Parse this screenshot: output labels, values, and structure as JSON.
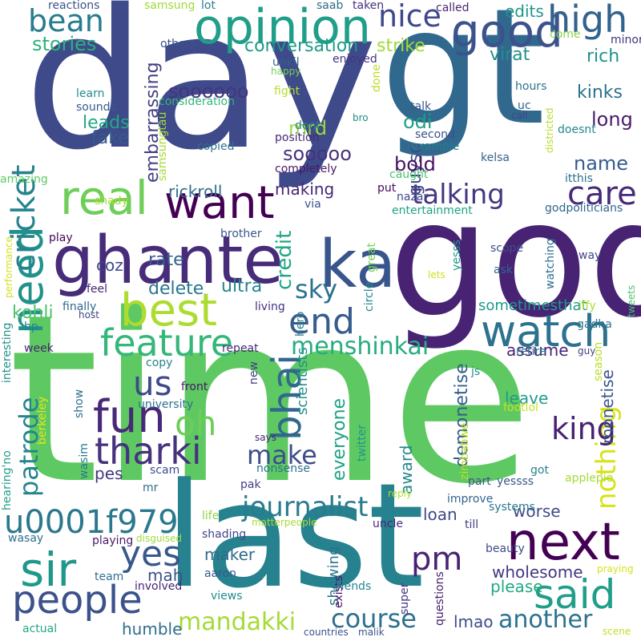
{
  "word_cloud": {
    "words": [
      {
        "text": "day",
        "color": "#3e4a89"
      },
      {
        "text": "gt",
        "color": "#31688e"
      },
      {
        "text": "time",
        "color": "#5ec962"
      },
      {
        "text": "god",
        "color": "#482374"
      },
      {
        "text": "last",
        "color": "#26828e"
      },
      {
        "text": "ghante",
        "color": "#472c7a"
      },
      {
        "text": "ka",
        "color": "#39568c"
      },
      {
        "text": "opinion",
        "color": "#1f9e89"
      },
      {
        "text": "good",
        "color": "#3b528b"
      },
      {
        "text": "high",
        "color": "#33638d"
      },
      {
        "text": "want",
        "color": "#440154"
      },
      {
        "text": "real",
        "color": "#6ece58"
      },
      {
        "text": "need",
        "color": "#21918c"
      },
      {
        "text": "best",
        "color": "#addc30"
      },
      {
        "text": "fun",
        "color": "#482878"
      },
      {
        "text": "tharki",
        "color": "#46327e"
      },
      {
        "text": "us",
        "color": "#3e4989"
      },
      {
        "text": "oh",
        "color": "#6ece58"
      },
      {
        "text": "feature",
        "color": "#35b779"
      },
      {
        "text": "watch",
        "color": "#2c728e"
      },
      {
        "text": "bhai",
        "color": "#31688e"
      },
      {
        "text": "end",
        "color": "#365d8d"
      },
      {
        "text": "care",
        "color": "#472a7a"
      },
      {
        "text": "talking",
        "color": "#453781"
      },
      {
        "text": "nice",
        "color": "#3e4989"
      },
      {
        "text": "bean",
        "color": "#287c8e"
      },
      {
        "text": "stories",
        "color": "#2db27d"
      },
      {
        "text": "cricket",
        "color": "#26828e"
      },
      {
        "text": "sir",
        "color": "#1f988b"
      },
      {
        "text": "people",
        "color": "#3b528b"
      },
      {
        "text": "yes",
        "color": "#38588c"
      },
      {
        "text": "u0001f979",
        "color": "#2a788e"
      },
      {
        "text": "next",
        "color": "#440154"
      },
      {
        "text": "said",
        "color": "#1f9e89"
      },
      {
        "text": "pm",
        "color": "#482374"
      },
      {
        "text": "journalist",
        "color": "#287c8e"
      },
      {
        "text": "make",
        "color": "#3d4e8a"
      },
      {
        "text": "patrode",
        "color": "#25848e"
      },
      {
        "text": "mandakki",
        "color": "#a5db36"
      },
      {
        "text": "course",
        "color": "#2d708e"
      },
      {
        "text": "another",
        "color": "#2c728e"
      },
      {
        "text": "nothing",
        "color": "#d8e219"
      },
      {
        "text": "king",
        "color": "#482173"
      },
      {
        "text": "menshinkai",
        "color": "#27ad81"
      },
      {
        "text": "sky",
        "color": "#2c728e"
      },
      {
        "text": "credit",
        "color": "#21a685"
      },
      {
        "text": "conversation",
        "color": "#1f9a8a"
      },
      {
        "text": "edits",
        "color": "#1f958b"
      },
      {
        "text": "strike",
        "color": "#a2da37"
      },
      {
        "text": "virat",
        "color": "#21918c"
      },
      {
        "text": "rich",
        "color": "#20928c"
      },
      {
        "text": "kinks",
        "color": "#2c728e"
      },
      {
        "text": "long",
        "color": "#481b6d"
      },
      {
        "text": "name",
        "color": "#365c8d"
      },
      {
        "text": "guyso",
        "color": "#3e4a89"
      },
      {
        "text": "soooooo",
        "color": "#463480"
      },
      {
        "text": "sooooo",
        "color": "#46327e"
      },
      {
        "text": "bold",
        "color": "#471063"
      },
      {
        "text": "odi",
        "color": "#1fa088"
      },
      {
        "text": "mrd",
        "color": "#9bd93c"
      },
      {
        "text": "leads",
        "color": "#22a884"
      },
      {
        "text": "fake",
        "color": "#375b8d"
      },
      {
        "text": "embarrassing",
        "color": "#423f85"
      },
      {
        "text": "making",
        "color": "#482777"
      },
      {
        "text": "rickroll",
        "color": "#2e6e8e"
      },
      {
        "text": "rate",
        "color": "#355f8d"
      },
      {
        "text": "coz",
        "color": "#3e4989"
      },
      {
        "text": "delete",
        "color": "#2a768e"
      },
      {
        "text": "ultra",
        "color": "#24868e"
      },
      {
        "text": "kohli",
        "color": "#4ec36b"
      },
      {
        "text": "assume",
        "color": "#482475"
      },
      {
        "text": "sometimesthat",
        "color": "#1e9b8a"
      },
      {
        "text": "demonetise",
        "color": "#355e8d"
      },
      {
        "text": "everyone",
        "color": "#1fa188"
      },
      {
        "text": "award",
        "color": "#23898e"
      },
      {
        "text": "scientists",
        "color": "#21918c"
      },
      {
        "text": "leave",
        "color": "#1f9a8a"
      },
      {
        "text": "monetise",
        "color": "#3b528b"
      },
      {
        "text": "worse",
        "color": "#3e4a89"
      },
      {
        "text": "loan",
        "color": "#3f4889"
      },
      {
        "text": "maker",
        "color": "#2f6b8e"
      },
      {
        "text": "wholesome",
        "color": "#453882"
      },
      {
        "text": "mah",
        "color": "#3b528b"
      },
      {
        "text": "humble",
        "color": "#2e6d8e"
      },
      {
        "text": "lmao",
        "color": "#3d4d8a"
      },
      {
        "text": "please",
        "color": "#22a884"
      },
      {
        "text": "showing",
        "color": "#2c738e"
      },
      {
        "text": "pes",
        "color": "#453781"
      },
      {
        "text": "reactions",
        "color": "#3a548c"
      },
      {
        "text": "samsung",
        "color": "#a0da39"
      },
      {
        "text": "lot",
        "color": "#26818e"
      },
      {
        "text": "saab",
        "color": "#2f6b8e"
      },
      {
        "text": "taken",
        "color": "#46307e"
      },
      {
        "text": "called",
        "color": "#482777"
      },
      {
        "text": "come",
        "color": "#86d549"
      },
      {
        "text": "minor",
        "color": "#46327e"
      },
      {
        "text": "others",
        "color": "#3b528b"
      },
      {
        "text": "unkil",
        "color": "#34618d"
      },
      {
        "text": "happy",
        "color": "#75d054"
      },
      {
        "text": "enjoyed",
        "color": "#453581"
      },
      {
        "text": "done",
        "color": "#bade28"
      },
      {
        "text": "learn",
        "color": "#228d8d"
      },
      {
        "text": "sounds",
        "color": "#365c8d"
      },
      {
        "text": "consideration",
        "color": "#32b67a"
      },
      {
        "text": "fight",
        "color": "#b5de2b"
      },
      {
        "text": "talk",
        "color": "#3a548c"
      },
      {
        "text": "hours",
        "color": "#2d718e"
      },
      {
        "text": "uc",
        "color": "#33638d"
      },
      {
        "text": "call",
        "color": "#3f4889"
      },
      {
        "text": "bro",
        "color": "#228c8d"
      },
      {
        "text": "dont",
        "color": "#27808e"
      },
      {
        "text": "position",
        "color": "#482878"
      },
      {
        "text": "second",
        "color": "#3b528b"
      },
      {
        "text": "example",
        "color": "#287d8e"
      },
      {
        "text": "doesnt",
        "color": "#23888e"
      },
      {
        "text": "samsungtau",
        "color": "#a8db34"
      },
      {
        "text": "copied",
        "color": "#2c728e"
      },
      {
        "text": "completely",
        "color": "#481769"
      },
      {
        "text": "kelsa",
        "color": "#34618d"
      },
      {
        "text": "districted",
        "color": "#b8de29"
      },
      {
        "text": "amazing",
        "color": "#5ec962"
      },
      {
        "text": "caught",
        "color": "#4ac16d"
      },
      {
        "text": "put",
        "color": "#46085c"
      },
      {
        "text": "itthis",
        "color": "#2d708e"
      },
      {
        "text": "nazar",
        "color": "#3f4788"
      },
      {
        "text": "entertainment",
        "color": "#20a386"
      },
      {
        "text": "godpoliticians",
        "color": "#31668e"
      },
      {
        "text": "shady",
        "color": "#a5db36"
      },
      {
        "text": "via",
        "color": "#3b528b"
      },
      {
        "text": "brother",
        "color": "#39568c"
      },
      {
        "text": "play",
        "color": "#450457"
      },
      {
        "text": "scope",
        "color": "#3d4e8a"
      },
      {
        "text": "yesss",
        "color": "#1e9b8a"
      },
      {
        "text": "watching",
        "color": "#2e6f8e"
      },
      {
        "text": "way",
        "color": "#404688"
      },
      {
        "text": "ask",
        "color": "#31668e"
      },
      {
        "text": "lets",
        "color": "#cde11d"
      },
      {
        "text": "performance",
        "color": "#d2e21b"
      },
      {
        "text": "tweets",
        "color": "#4ac16d"
      },
      {
        "text": "feel",
        "color": "#482575"
      },
      {
        "text": "great",
        "color": "#73d056"
      },
      {
        "text": "circle",
        "color": "#23898e"
      },
      {
        "text": "living",
        "color": "#46327e"
      },
      {
        "text": "finally",
        "color": "#31688e"
      },
      {
        "text": "host",
        "color": "#3f4788"
      },
      {
        "text": "bp",
        "color": "#26828e"
      },
      {
        "text": "iffy",
        "color": "#addc30"
      },
      {
        "text": "hero",
        "color": "#297a8e"
      },
      {
        "text": "gadha",
        "color": "#2c728e"
      },
      {
        "text": "repeat",
        "color": "#482878"
      },
      {
        "text": "guy",
        "color": "#424086"
      },
      {
        "text": "retire",
        "color": "#2a768e"
      },
      {
        "text": "season",
        "color": "#bade28"
      },
      {
        "text": "week",
        "color": "#482475"
      },
      {
        "text": "interesting",
        "color": "#21918c"
      },
      {
        "text": "copy",
        "color": "#27808e"
      },
      {
        "text": "new",
        "color": "#423f85"
      },
      {
        "text": "js",
        "color": "#21918c"
      },
      {
        "text": "berkeley",
        "color": "#e5e419"
      },
      {
        "text": "front",
        "color": "#481668"
      },
      {
        "text": "university",
        "color": "#2c728e"
      },
      {
        "text": "show",
        "color": "#2e6e8e"
      },
      {
        "text": "footlol",
        "color": "#c8e020"
      },
      {
        "text": "hearing'no",
        "color": "#1f9e89"
      },
      {
        "text": "wasim",
        "color": "#2a788e"
      },
      {
        "text": "zimbabwe",
        "color": "#bddf26"
      },
      {
        "text": "says",
        "color": "#482677"
      },
      {
        "text": "twitter",
        "color": "#1f948c"
      },
      {
        "text": "scam",
        "color": "#3d4d8a"
      },
      {
        "text": "mr",
        "color": "#2e6d8e"
      },
      {
        "text": "nonsense",
        "color": "#2d718e"
      },
      {
        "text": "yessss",
        "color": "#38588c"
      },
      {
        "text": "got",
        "color": "#26828e"
      },
      {
        "text": "pak",
        "color": "#424186"
      },
      {
        "text": "part",
        "color": "#3a548c"
      },
      {
        "text": "reply",
        "color": "#b0dd2f"
      },
      {
        "text": "improve",
        "color": "#32648e"
      },
      {
        "text": "applepie",
        "color": "#a5db36"
      },
      {
        "text": "life",
        "color": "#8bd646"
      },
      {
        "text": "matterpeople",
        "color": "#a8db34"
      },
      {
        "text": "systems",
        "color": "#2a778e"
      },
      {
        "text": "till",
        "color": "#433e85"
      },
      {
        "text": "wasay",
        "color": "#2d708e"
      },
      {
        "text": "disguised",
        "color": "#9fda3a"
      },
      {
        "text": "uncle",
        "color": "#482878"
      },
      {
        "text": "shading",
        "color": "#3f4788"
      },
      {
        "text": "playing",
        "color": "#481a6c"
      },
      {
        "text": "beauty",
        "color": "#3e4a89"
      },
      {
        "text": "exists",
        "color": "#481467"
      },
      {
        "text": "aaron",
        "color": "#375a8c"
      },
      {
        "text": "team",
        "color": "#2d708e"
      },
      {
        "text": "friends",
        "color": "#24868e"
      },
      {
        "text": "involved",
        "color": "#482475"
      },
      {
        "text": "views",
        "color": "#228b8d"
      },
      {
        "text": "super",
        "color": "#453581"
      },
      {
        "text": "questions",
        "color": "#482071"
      },
      {
        "text": "praying",
        "color": "#d5e21a"
      },
      {
        "text": "actual",
        "color": "#22a785"
      },
      {
        "text": "countries",
        "color": "#3b528b"
      },
      {
        "text": "malik",
        "color": "#3b528b"
      },
      {
        "text": "scene",
        "color": "#c0df25"
      }
    ]
  }
}
